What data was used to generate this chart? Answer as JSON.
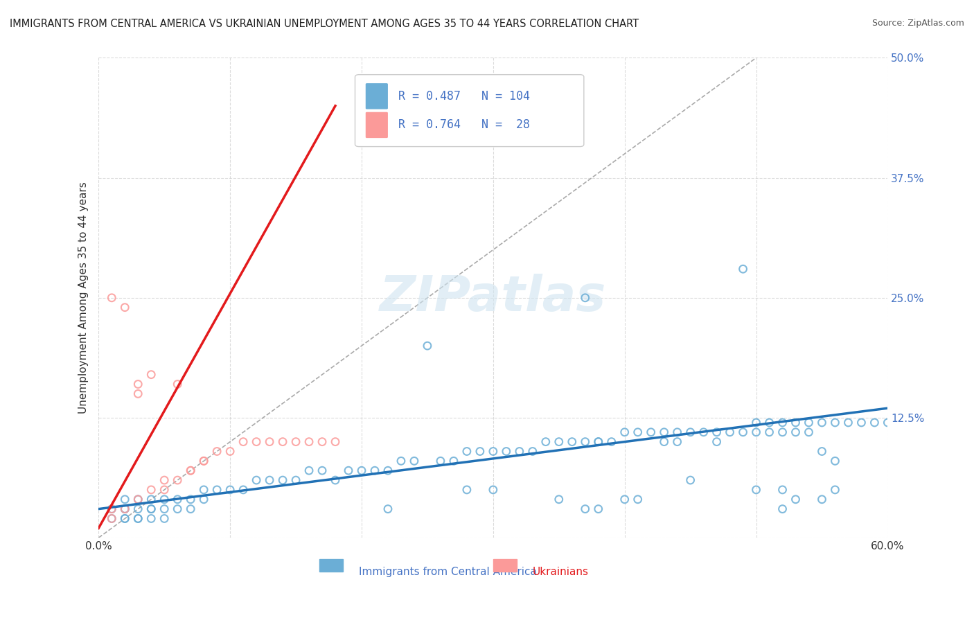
{
  "title": "IMMIGRANTS FROM CENTRAL AMERICA VS UKRAINIAN UNEMPLOYMENT AMONG AGES 35 TO 44 YEARS CORRELATION CHART",
  "source": "Source: ZipAtlas.com",
  "xlabel_bottom": "Immigrants from Central America",
  "xlabel_bottom2": "Ukrainians",
  "ylabel": "Unemployment Among Ages 35 to 44 years",
  "xlim": [
    0.0,
    0.6
  ],
  "ylim": [
    0.0,
    0.5
  ],
  "yticks": [
    0.0,
    0.125,
    0.25,
    0.375,
    0.5
  ],
  "ytick_labels": [
    "",
    "12.5%",
    "25.0%",
    "37.5%",
    "50.0%"
  ],
  "xticks": [
    0.0,
    0.1,
    0.2,
    0.3,
    0.4,
    0.5,
    0.6
  ],
  "xtick_labels": [
    "0.0%",
    "",
    "",
    "",
    "",
    "",
    "60.0%"
  ],
  "blue_color": "#6baed6",
  "pink_color": "#fb9a99",
  "blue_line_color": "#2171b5",
  "pink_line_color": "#e31a1c",
  "legend_R_blue": "0.487",
  "legend_N_blue": "104",
  "legend_R_pink": "0.764",
  "legend_N_pink": "28",
  "watermark": "ZIPatlas",
  "background_color": "#ffffff",
  "blue_scatter_x": [
    0.01,
    0.01,
    0.02,
    0.02,
    0.02,
    0.02,
    0.02,
    0.03,
    0.03,
    0.03,
    0.03,
    0.04,
    0.04,
    0.04,
    0.04,
    0.05,
    0.05,
    0.05,
    0.06,
    0.06,
    0.07,
    0.07,
    0.08,
    0.08,
    0.09,
    0.1,
    0.11,
    0.12,
    0.13,
    0.14,
    0.15,
    0.16,
    0.17,
    0.18,
    0.19,
    0.2,
    0.21,
    0.22,
    0.23,
    0.24,
    0.25,
    0.26,
    0.27,
    0.28,
    0.29,
    0.3,
    0.31,
    0.32,
    0.33,
    0.34,
    0.35,
    0.36,
    0.37,
    0.38,
    0.39,
    0.4,
    0.41,
    0.42,
    0.43,
    0.44,
    0.45,
    0.46,
    0.47,
    0.48,
    0.49,
    0.5,
    0.51,
    0.52,
    0.53,
    0.54,
    0.55,
    0.56,
    0.57,
    0.58,
    0.59,
    0.6,
    0.37,
    0.38,
    0.43,
    0.44,
    0.47,
    0.49,
    0.5,
    0.51,
    0.52,
    0.53,
    0.54,
    0.55,
    0.56,
    0.45,
    0.28,
    0.3,
    0.4,
    0.41,
    0.35,
    0.53,
    0.55,
    0.37,
    0.38,
    0.52,
    0.22,
    0.5,
    0.52,
    0.56
  ],
  "blue_scatter_y": [
    0.02,
    0.03,
    0.02,
    0.03,
    0.04,
    0.02,
    0.03,
    0.02,
    0.03,
    0.04,
    0.02,
    0.03,
    0.02,
    0.04,
    0.03,
    0.03,
    0.02,
    0.04,
    0.03,
    0.04,
    0.04,
    0.03,
    0.04,
    0.05,
    0.05,
    0.05,
    0.05,
    0.06,
    0.06,
    0.06,
    0.06,
    0.07,
    0.07,
    0.06,
    0.07,
    0.07,
    0.07,
    0.07,
    0.08,
    0.08,
    0.2,
    0.08,
    0.08,
    0.09,
    0.09,
    0.09,
    0.09,
    0.09,
    0.09,
    0.1,
    0.1,
    0.1,
    0.1,
    0.1,
    0.1,
    0.11,
    0.11,
    0.11,
    0.11,
    0.11,
    0.11,
    0.11,
    0.11,
    0.11,
    0.11,
    0.12,
    0.12,
    0.12,
    0.12,
    0.12,
    0.12,
    0.12,
    0.12,
    0.12,
    0.12,
    0.12,
    0.25,
    0.1,
    0.1,
    0.1,
    0.1,
    0.28,
    0.11,
    0.11,
    0.11,
    0.11,
    0.11,
    0.09,
    0.08,
    0.06,
    0.05,
    0.05,
    0.04,
    0.04,
    0.04,
    0.04,
    0.04,
    0.03,
    0.03,
    0.03,
    0.03,
    0.05,
    0.05,
    0.05
  ],
  "pink_scatter_x": [
    0.01,
    0.01,
    0.01,
    0.02,
    0.02,
    0.03,
    0.03,
    0.03,
    0.04,
    0.04,
    0.05,
    0.05,
    0.06,
    0.06,
    0.07,
    0.07,
    0.08,
    0.08,
    0.09,
    0.1,
    0.11,
    0.12,
    0.13,
    0.14,
    0.15,
    0.16,
    0.17,
    0.18
  ],
  "pink_scatter_y": [
    0.02,
    0.03,
    0.25,
    0.24,
    0.03,
    0.04,
    0.15,
    0.16,
    0.05,
    0.17,
    0.05,
    0.06,
    0.06,
    0.16,
    0.07,
    0.07,
    0.08,
    0.08,
    0.09,
    0.09,
    0.1,
    0.1,
    0.1,
    0.1,
    0.1,
    0.1,
    0.1,
    0.1
  ],
  "blue_trend_x": [
    0.0,
    0.6
  ],
  "blue_trend_y": [
    0.03,
    0.135
  ],
  "pink_trend_x": [
    0.0,
    0.18
  ],
  "pink_trend_y": [
    0.01,
    0.45
  ],
  "diag_line_x": [
    0.0,
    0.5
  ],
  "diag_line_y": [
    0.0,
    0.5
  ]
}
